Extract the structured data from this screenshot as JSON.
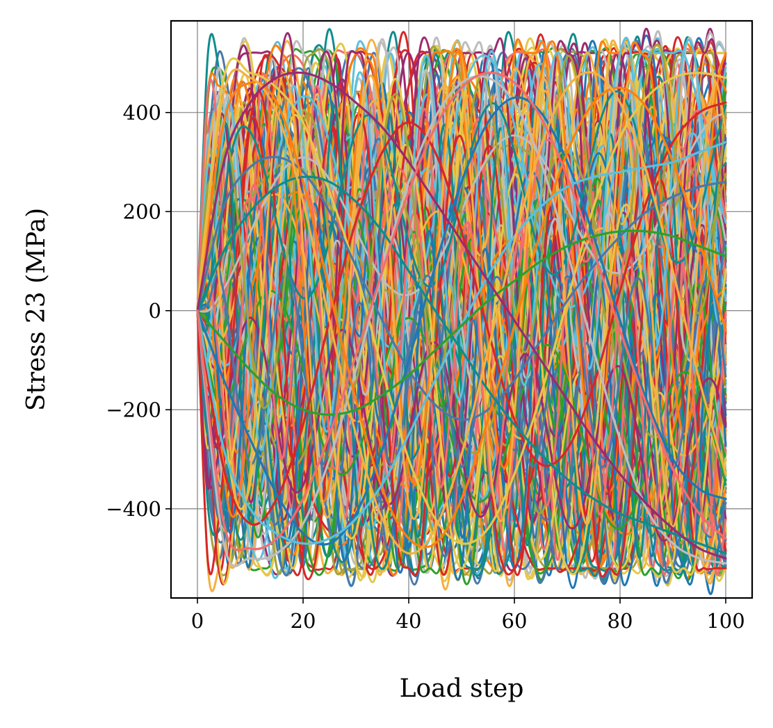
{
  "chart_data": {
    "type": "line",
    "title": "",
    "xlabel": "Load step",
    "ylabel": "Stress 23 (MPa)",
    "xlim": [
      -5,
      105
    ],
    "ylim": [
      -580,
      585
    ],
    "x_ticks": [
      0,
      20,
      40,
      60,
      80,
      100
    ],
    "x_tick_labels": [
      "0",
      "20",
      "40",
      "60",
      "80",
      "100"
    ],
    "y_ticks": [
      400,
      200,
      0,
      -200,
      -400
    ],
    "y_tick_labels": [
      "400",
      "200",
      "0",
      "−200",
      "−400"
    ],
    "grid": true,
    "legend": "none",
    "series_count_estimate": "several hundred overlapping curves",
    "palette": [
      "#1f77b4",
      "#d62728",
      "#2ca02c",
      "#ff7f0e",
      "#e6c84a",
      "#9b2a6f",
      "#5bc0de",
      "#bdbdbd",
      "#f26d6d",
      "#0f8c8c",
      "#4a78a8",
      "#a3a33a",
      "#f5b041"
    ],
    "series_examples": [
      {
        "x": [
          0,
          5,
          10,
          15,
          20,
          25,
          30,
          35,
          40,
          45,
          50,
          55,
          60,
          65,
          70,
          75,
          80,
          85,
          90,
          95,
          100
        ],
        "values": [
          0,
          -320,
          -430,
          -380,
          -230,
          -20,
          180,
          320,
          380,
          320,
          160,
          -40,
          -220,
          -310,
          -280,
          -150,
          40,
          220,
          340,
          400,
          420
        ]
      },
      {
        "x": [
          0,
          5,
          10,
          15,
          20,
          25,
          30,
          35,
          40,
          45,
          50,
          55,
          60,
          65,
          70,
          75,
          80,
          85,
          90,
          95,
          100
        ],
        "values": [
          0,
          470,
          480,
          450,
          380,
          240,
          80,
          -120,
          -300,
          -420,
          -470,
          -440,
          -330,
          -170,
          20,
          210,
          350,
          430,
          470,
          480,
          470
        ]
      },
      {
        "x": [
          0,
          5,
          10,
          15,
          20,
          25,
          30,
          35,
          40,
          45,
          50,
          55,
          60,
          65,
          70,
          75,
          80,
          85,
          90,
          95,
          100
        ],
        "values": [
          0,
          -470,
          -500,
          -490,
          -430,
          -300,
          -120,
          80,
          260,
          390,
          460,
          470,
          420,
          300,
          120,
          -80,
          -260,
          -400,
          -470,
          -500,
          -510
        ]
      },
      {
        "x": [
          0,
          5,
          10,
          15,
          20,
          25,
          30,
          35,
          40,
          45,
          50,
          55,
          60,
          65,
          70,
          75,
          80,
          85,
          90,
          95,
          100
        ],
        "values": [
          0,
          210,
          290,
          310,
          280,
          200,
          90,
          -20,
          -120,
          -190,
          -220,
          -200,
          -140,
          -60,
          20,
          90,
          150,
          200,
          230,
          250,
          260
        ]
      },
      {
        "x": [
          0,
          5,
          10,
          15,
          20,
          25,
          30,
          35,
          40,
          45,
          50,
          55,
          60,
          65,
          70,
          75,
          80,
          85,
          90,
          95,
          100
        ],
        "values": [
          0,
          -140,
          -260,
          -370,
          -450,
          -470,
          -410,
          -280,
          -100,
          90,
          260,
          380,
          430,
          400,
          300,
          150,
          -20,
          -180,
          -300,
          -360,
          -380
        ]
      },
      {
        "x": [
          0,
          5,
          10,
          15,
          20,
          25,
          30,
          35,
          40,
          45,
          50,
          55,
          60,
          65,
          70,
          75,
          80,
          85,
          90,
          95,
          100
        ],
        "values": [
          0,
          380,
          460,
          420,
          260,
          40,
          -180,
          -360,
          -460,
          -470,
          -380,
          -220,
          -30,
          160,
          320,
          420,
          450,
          410,
          300,
          140,
          -40
        ]
      },
      {
        "x": [
          0,
          5,
          10,
          15,
          20,
          25,
          30,
          35,
          40,
          45,
          50,
          55,
          60,
          65,
          70,
          75,
          80,
          85,
          90,
          95,
          100
        ],
        "values": [
          0,
          -280,
          -400,
          -450,
          -470,
          -460,
          -420,
          -350,
          -250,
          -140,
          -30,
          70,
          150,
          210,
          250,
          270,
          280,
          290,
          300,
          320,
          340
        ]
      },
      {
        "x": [
          0,
          5,
          10,
          15,
          20,
          25,
          30,
          35,
          40,
          45,
          50,
          55,
          60,
          65,
          70,
          75,
          80,
          85,
          90,
          95,
          100
        ],
        "values": [
          0,
          120,
          200,
          250,
          270,
          260,
          220,
          160,
          80,
          0,
          -80,
          -160,
          -230,
          -290,
          -340,
          -380,
          -410,
          -430,
          -450,
          -470,
          -490
        ]
      },
      {
        "x": [
          0,
          5,
          10,
          15,
          20,
          25,
          30,
          35,
          40,
          45,
          50,
          55,
          60,
          65,
          70,
          75,
          80,
          85,
          90,
          95,
          100
        ],
        "values": [
          0,
          440,
          470,
          400,
          220,
          -20,
          -250,
          -420,
          -490,
          -440,
          -290,
          -80,
          140,
          330,
          450,
          480,
          420,
          280,
          80,
          -140,
          -330
        ]
      },
      {
        "x": [
          0,
          5,
          10,
          15,
          20,
          25,
          30,
          35,
          40,
          45,
          50,
          55,
          60,
          65,
          70,
          75,
          80,
          85,
          90,
          95,
          100
        ],
        "values": [
          0,
          -60,
          -120,
          -170,
          -200,
          -210,
          -200,
          -170,
          -130,
          -80,
          -30,
          20,
          60,
          100,
          130,
          150,
          160,
          160,
          150,
          130,
          110
        ]
      },
      {
        "x": [
          0,
          5,
          10,
          15,
          20,
          25,
          30,
          35,
          40,
          45,
          50,
          55,
          60,
          65,
          70,
          75,
          80,
          85,
          90,
          95,
          100
        ],
        "values": [
          0,
          300,
          420,
          470,
          480,
          460,
          420,
          370,
          300,
          220,
          140,
          60,
          -20,
          -100,
          -180,
          -260,
          -330,
          -390,
          -440,
          -480,
          -500
        ]
      },
      {
        "x": [
          0,
          5,
          10,
          15,
          20,
          25,
          30,
          35,
          40,
          45,
          50,
          55,
          60,
          65,
          70,
          75,
          80,
          85,
          90,
          95,
          100
        ],
        "values": [
          0,
          -430,
          -480,
          -460,
          -380,
          -250,
          -90,
          80,
          240,
          370,
          450,
          480,
          460,
          390,
          270,
          120,
          -40,
          -190,
          -320,
          -410,
          -460
        ]
      }
    ]
  }
}
